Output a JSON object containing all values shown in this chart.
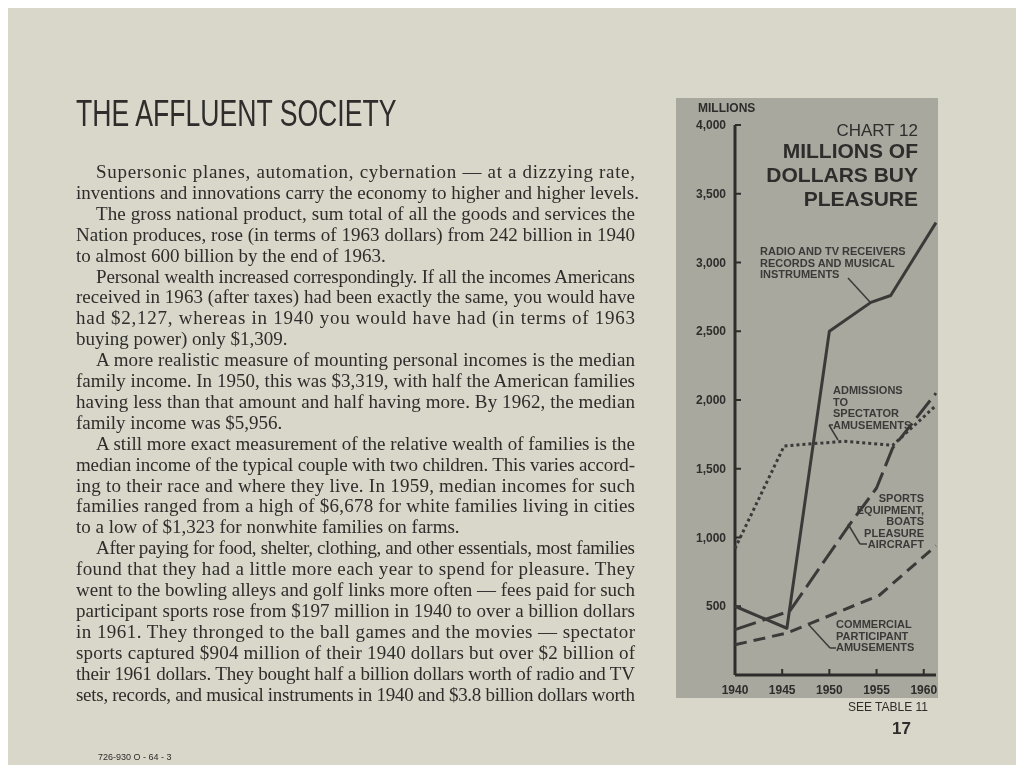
{
  "chart_data": {
    "type": "line",
    "subtitle": "CHART 12",
    "title": "MILLIONS OF\nDOLLARS BUY\nPLEASURE",
    "ylabel": "MILLIONS",
    "xlim": [
      1940,
      1961.3
    ],
    "xticks": [
      1940,
      1945,
      1950,
      1955,
      1960
    ],
    "ylim": [
      0,
      4000
    ],
    "yticks": [
      {
        "value": 500,
        "label": "500"
      },
      {
        "value": 1000,
        "label": "1,000"
      },
      {
        "value": 1500,
        "label": "1,500"
      },
      {
        "value": 2000,
        "label": "2,000"
      },
      {
        "value": 2500,
        "label": "2,500"
      },
      {
        "value": 3000,
        "label": "3,000"
      },
      {
        "value": 3500,
        "label": "3,500"
      },
      {
        "value": 4000,
        "label": "4,000"
      }
    ],
    "grid": false,
    "marker": "none",
    "series": [
      {
        "name": "RADIO AND TV RECEIVERS\nRECORDS AND MUSICAL\nINSTRUMENTS",
        "color": "#3b3a38",
        "line_style": "solid",
        "x": [
          1940,
          1945.5,
          1950,
          1954.4,
          1956.5,
          1961.3
        ],
        "values": [
          500,
          340,
          2500,
          2710,
          2760,
          3290
        ]
      },
      {
        "name": "ADMISSIONS\nTO\nSPECTATOR\nAMUSEMENTS",
        "color": "#3b3a38",
        "line_style": "dotted",
        "x": [
          1940,
          1945.2,
          1951.5,
          1956.7,
          1961.3
        ],
        "values": [
          920,
          1665,
          1700,
          1670,
          1960
        ]
      },
      {
        "name": "SPORTS\nEQUIPMENT,\nBOATS\nPLEASURE\nAIRCRAFT",
        "color": "#3b3a38",
        "line_style": "longdash",
        "x": [
          1940,
          1945.8,
          1952.1,
          1955,
          1956.7,
          1961.3
        ],
        "values": [
          330,
          465,
          1090,
          1360,
          1650,
          2050
        ]
      },
      {
        "name": "COMMERCIAL\nPARTICIPANT\nAMUSEMENTS",
        "color": "#3b3a38",
        "line_style": "dashed",
        "x": [
          1940,
          1945.5,
          1955.3,
          1961.3
        ],
        "values": [
          220,
          305,
          580,
          940
        ]
      }
    ],
    "annotations": [
      "THE AFFLUENT SOCIETY",
      "Supersonic planes, automation, cybernation — at a dizzying rate,",
      "inventions and innovations carry the economy to higher and higher levels.",
      "The gross national product, sum total of all the goods and services the",
      "Nation produces, rose (in terms of 1963 dollars) from 242 billion in 1940",
      "to almost 600 billion by the end of 1963.",
      "Personal wealth increased correspondingly. If all the incomes Americans",
      "received in 1963 (after taxes) had been exactly the same, you would have",
      "had $2,127, whereas in 1940 you would have had (in terms of 1963",
      "buying power) only $1,309.",
      "A more realistic measure of mounting personal incomes is the median",
      "family income. In 1950, this was $3,319, with half the American families",
      "having less than that amount and half having more. By 1962, the median",
      "family income was $5,956.",
      "A still more exact measurement of the relative wealth of families is the",
      "median income of the typical couple with two children. This varies accord-",
      "ing to their race and where they live. In 1959, median incomes for such",
      "families ranged from a high of $6,678 for white families living in cities",
      "to a low of $1,323 for nonwhite families on farms.",
      "After paying for food, shelter, clothing, and other essentials, most families",
      "found that they had a little more each year to spend for pleasure. They",
      "went to the bowling alleys and golf links more often — fees paid for such",
      "participant sports rose from $197 million in 1940 to over a billion dollars",
      "in 1961. They thronged to the ball games and the movies — spectator",
      "sports captured $904 million of their 1940 dollars but over $2 billion of",
      "their 1961 dollars. They bought half a billion dollars worth of radio and TV",
      "sets, records, and musical instruments in 1940 and $3.8 billion dollars worth",
      "SEE TABLE 11",
      "17",
      "726-930 O - 64 - 3"
    ]
  }
}
